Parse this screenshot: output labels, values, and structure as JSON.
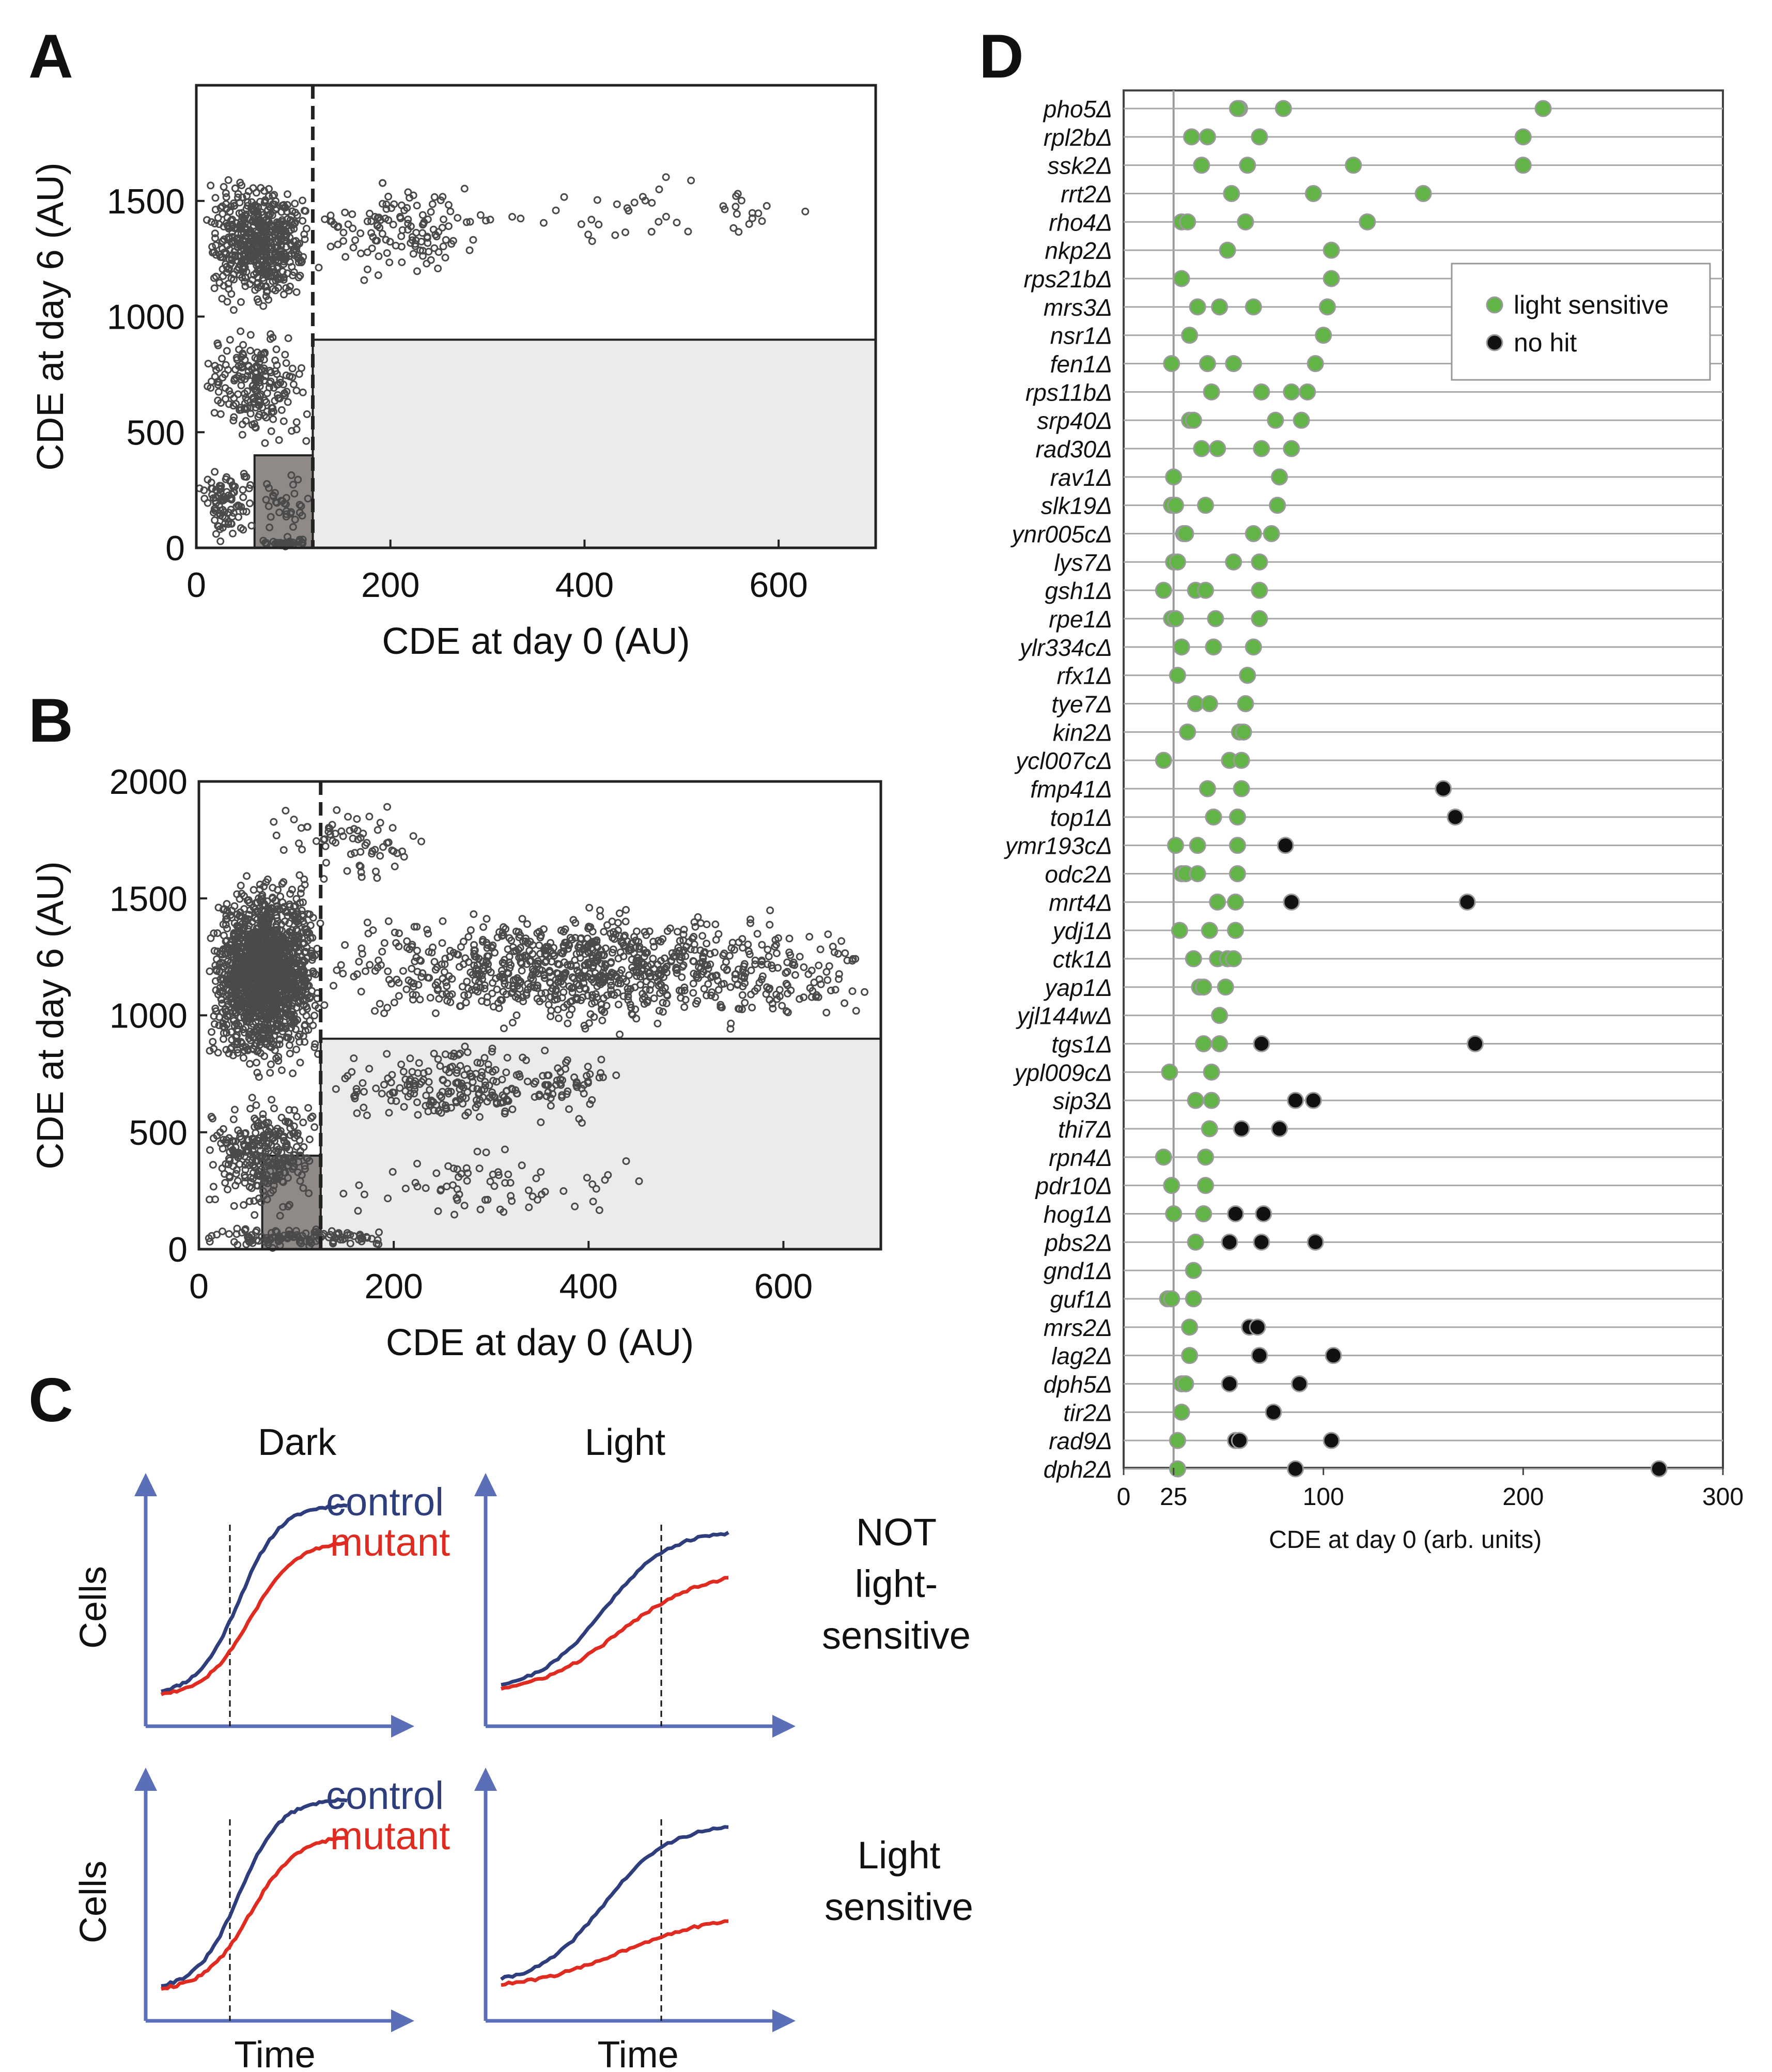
{
  "panels": {
    "A": {
      "letter": "A"
    },
    "B": {
      "letter": "B"
    },
    "C": {
      "letter": "C"
    },
    "D": {
      "letter": "D"
    }
  },
  "colors": {
    "scatter_marker": "#4a4a4a",
    "control": "#2e3d7c",
    "mutant": "#e02b20",
    "axis_arrow": "#5a6fb8",
    "light_sensitive": "#62b446",
    "no_hit": "#111111",
    "shade_light": "#ebebeb",
    "shade_dark": "#8f8a87"
  },
  "chart_data": [
    {
      "id": "A",
      "type": "scatter",
      "xlabel": "CDE at day 0 (AU)",
      "ylabel": "CDE at day 6 (AU)",
      "xlim": [
        0,
        700
      ],
      "ylim": [
        0,
        2000
      ],
      "xticks": [
        0,
        200,
        400,
        600
      ],
      "yticks": [
        0,
        500,
        1000,
        1500
      ],
      "threshold_x": 120,
      "light_region": {
        "x": [
          120,
          700
        ],
        "y": [
          0,
          900
        ]
      },
      "dark_region": {
        "x": [
          60,
          120
        ],
        "y": [
          0,
          400
        ]
      },
      "clusters": [
        {
          "n": 550,
          "x": [
            10,
            118
          ],
          "y": [
            1000,
            1650
          ]
        },
        {
          "n": 200,
          "x": [
            5,
            118
          ],
          "y": [
            400,
            1000
          ]
        },
        {
          "n": 90,
          "x": [
            0,
            60
          ],
          "y": [
            0,
            400
          ]
        },
        {
          "n": 35,
          "x": [
            60,
            118
          ],
          "y": [
            0,
            400
          ]
        },
        {
          "n": 30,
          "x": [
            60,
            120
          ],
          "y": [
            0,
            40
          ]
        },
        {
          "n": 130,
          "x": [
            120,
            300
          ],
          "y": [
            1100,
            1650
          ]
        },
        {
          "n": 45,
          "x": [
            300,
            640
          ],
          "y": [
            1250,
            1660
          ]
        }
      ]
    },
    {
      "id": "B",
      "type": "scatter",
      "xlabel": "CDE at day 0 (AU)",
      "ylabel": "CDE at day 6 (AU)",
      "xlim": [
        0,
        700
      ],
      "ylim": [
        0,
        2000
      ],
      "xticks": [
        0,
        200,
        400,
        600
      ],
      "yticks": [
        0,
        500,
        1000,
        1500,
        2000
      ],
      "threshold_x": 125,
      "light_region": {
        "x": [
          125,
          700
        ],
        "y": [
          0,
          900
        ]
      },
      "dark_region": {
        "x": [
          65,
          125
        ],
        "y": [
          0,
          400
        ]
      },
      "clusters": [
        {
          "n": 1500,
          "x": [
            10,
            125
          ],
          "y": [
            700,
            1650
          ]
        },
        {
          "n": 300,
          "x": [
            5,
            125
          ],
          "y": [
            100,
            700
          ]
        },
        {
          "n": 120,
          "x": [
            0,
            200
          ],
          "y": [
            0,
            100
          ]
        },
        {
          "n": 900,
          "x": [
            125,
            700
          ],
          "y": [
            900,
            1500
          ]
        },
        {
          "n": 250,
          "x": [
            125,
            450
          ],
          "y": [
            500,
            900
          ]
        },
        {
          "n": 70,
          "x": [
            125,
            500
          ],
          "y": [
            50,
            500
          ]
        },
        {
          "n": 70,
          "x": [
            50,
            250
          ],
          "y": [
            1500,
            1950
          ]
        }
      ]
    },
    {
      "id": "D",
      "type": "scatter",
      "xlabel": "CDE at day 0 (arb. units)",
      "xlim": [
        0,
        300
      ],
      "xticks": [
        0,
        25,
        100,
        200,
        300
      ],
      "reference_x": 25,
      "legend": [
        "light sensitive",
        "no hit"
      ],
      "legend_position": "top-right",
      "genes": [
        {
          "name": "pho5Δ",
          "green": [
            58,
            57,
            80,
            210
          ],
          "black": []
        },
        {
          "name": "rpl2bΔ",
          "green": [
            34,
            42,
            68,
            200
          ],
          "black": []
        },
        {
          "name": "ssk2Δ",
          "green": [
            39,
            62,
            115,
            200
          ],
          "black": []
        },
        {
          "name": "rrt2Δ",
          "green": [
            54,
            95,
            150
          ],
          "black": []
        },
        {
          "name": "rho4Δ",
          "green": [
            29,
            32,
            61,
            122
          ],
          "black": []
        },
        {
          "name": "nkp2Δ",
          "green": [
            52,
            104
          ],
          "black": []
        },
        {
          "name": "rps21bΔ",
          "green": [
            29,
            104
          ],
          "black": []
        },
        {
          "name": "mrs3Δ",
          "green": [
            37,
            48,
            65,
            102
          ],
          "black": []
        },
        {
          "name": "nsr1Δ",
          "green": [
            33,
            100
          ],
          "black": []
        },
        {
          "name": "fen1Δ",
          "green": [
            24,
            42,
            55,
            96
          ],
          "black": []
        },
        {
          "name": "rps11bΔ",
          "green": [
            44,
            69,
            84,
            92
          ],
          "black": []
        },
        {
          "name": "srp40Δ",
          "green": [
            33,
            35,
            76,
            89
          ],
          "black": []
        },
        {
          "name": "rad30Δ",
          "green": [
            39,
            47,
            69,
            84
          ],
          "black": []
        },
        {
          "name": "rav1Δ",
          "green": [
            25,
            78
          ],
          "black": []
        },
        {
          "name": "slk19Δ",
          "green": [
            24,
            26,
            41,
            77
          ],
          "black": []
        },
        {
          "name": "ynr005cΔ",
          "green": [
            30,
            31,
            65,
            74
          ],
          "black": []
        },
        {
          "name": "lys7Δ",
          "green": [
            25,
            27,
            55,
            68
          ],
          "black": []
        },
        {
          "name": "gsh1Δ",
          "green": [
            20,
            36,
            41,
            68
          ],
          "black": []
        },
        {
          "name": "rpe1Δ",
          "green": [
            24,
            26,
            46,
            68
          ],
          "black": []
        },
        {
          "name": "ylr334cΔ",
          "green": [
            29,
            45,
            65
          ],
          "black": []
        },
        {
          "name": "rfx1Δ",
          "green": [
            27,
            62
          ],
          "black": []
        },
        {
          "name": "tye7Δ",
          "green": [
            36,
            43,
            61
          ],
          "black": []
        },
        {
          "name": "kin2Δ",
          "green": [
            32,
            58,
            60
          ],
          "black": []
        },
        {
          "name": "ycl007cΔ",
          "green": [
            20,
            53,
            59
          ],
          "black": []
        },
        {
          "name": "fmp41Δ",
          "green": [
            42,
            59
          ],
          "black": [
            160
          ]
        },
        {
          "name": "top1Δ",
          "green": [
            45,
            57
          ],
          "black": [
            166
          ]
        },
        {
          "name": "ymr193cΔ",
          "green": [
            26,
            37,
            57
          ],
          "black": [
            81
          ]
        },
        {
          "name": "odc2Δ",
          "green": [
            29,
            31,
            37,
            57
          ],
          "black": []
        },
        {
          "name": "mrt4Δ",
          "green": [
            47,
            56
          ],
          "black": [
            84,
            172
          ]
        },
        {
          "name": "ydj1Δ",
          "green": [
            28,
            43,
            56
          ],
          "black": []
        },
        {
          "name": "ctk1Δ",
          "green": [
            35,
            47,
            52,
            55
          ],
          "black": []
        },
        {
          "name": "yap1Δ",
          "green": [
            38,
            40,
            51
          ],
          "black": []
        },
        {
          "name": "yjl144wΔ",
          "green": [
            48
          ],
          "black": []
        },
        {
          "name": "tgs1Δ",
          "green": [
            40,
            48
          ],
          "black": [
            69,
            176
          ]
        },
        {
          "name": "ypl009cΔ",
          "green": [
            23,
            44
          ],
          "black": []
        },
        {
          "name": "sip3Δ",
          "green": [
            36,
            44
          ],
          "black": [
            86,
            95
          ]
        },
        {
          "name": "thi7Δ",
          "green": [
            43
          ],
          "black": [
            59,
            78
          ]
        },
        {
          "name": "rpn4Δ",
          "green": [
            20,
            41
          ],
          "black": []
        },
        {
          "name": "pdr10Δ",
          "green": [
            24,
            41
          ],
          "black": []
        },
        {
          "name": "hog1Δ",
          "green": [
            25,
            40
          ],
          "black": [
            56,
            70
          ]
        },
        {
          "name": "pbs2Δ",
          "green": [
            36
          ],
          "black": [
            53,
            69,
            96
          ]
        },
        {
          "name": "gnd1Δ",
          "green": [
            35
          ],
          "black": []
        },
        {
          "name": "guf1Δ",
          "green": [
            22,
            24,
            35
          ],
          "black": []
        },
        {
          "name": "mrs2Δ",
          "green": [
            33
          ],
          "black": [
            63,
            67
          ]
        },
        {
          "name": "lag2Δ",
          "green": [
            33
          ],
          "black": [
            68,
            105
          ]
        },
        {
          "name": "dph5Δ",
          "green": [
            29,
            31
          ],
          "black": [
            53,
            88
          ]
        },
        {
          "name": "tir2Δ",
          "green": [
            29
          ],
          "black": [
            75
          ]
        },
        {
          "name": "rad9Δ",
          "green": [
            27
          ],
          "black": [
            56,
            58,
            104
          ]
        },
        {
          "name": "dph2Δ",
          "green": [
            27
          ],
          "black": [
            86,
            268
          ]
        }
      ]
    }
  ],
  "panel_c": {
    "dark_title": "Dark",
    "light_title": "Light",
    "ylabel": "Cells",
    "xlabel": "Time",
    "control_label": "control",
    "mutant_label": "mutant",
    "not_sensitive_label": [
      "NOT",
      "light-",
      "sensitive"
    ],
    "sensitive_label": [
      "Light",
      "sensitive"
    ]
  }
}
